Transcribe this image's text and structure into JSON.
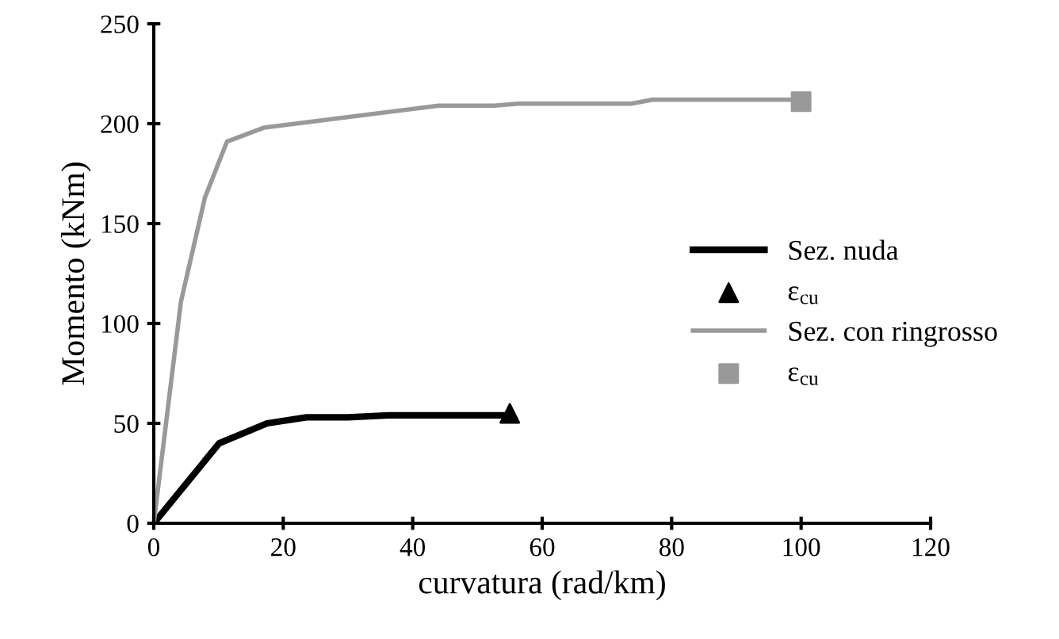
{
  "chart_data": {
    "type": "line",
    "xlabel": "curvatura (rad/km)",
    "ylabel": "Momento (kNm)",
    "xlim": [
      0,
      120
    ],
    "xticks": [
      0,
      20,
      40,
      60,
      80,
      100,
      120
    ],
    "ylim": [
      0,
      250
    ],
    "yticks": [
      0,
      50,
      100,
      150,
      200,
      250
    ],
    "grid": false,
    "legend": "right",
    "series": [
      {
        "name": "Sez. nuda",
        "color": "#000000",
        "x": [
          0,
          10.1,
          17.5,
          23.6,
          30,
          36.3,
          54.7
        ],
        "values": [
          0,
          40,
          50,
          53,
          53,
          54,
          54
        ]
      },
      {
        "name": "ε$_{cu}$",
        "type": "scatter",
        "marker": "triangle",
        "color": "#000000",
        "x": [
          55
        ],
        "values": [
          55
        ]
      },
      {
        "name": "Sez. con ringrosso",
        "color": "#999999",
        "x": [
          0,
          4.2,
          7.9,
          11.3,
          17,
          44,
          52.6,
          56.3,
          73.8,
          77,
          100
        ],
        "values": [
          0,
          111,
          163,
          191,
          198,
          209,
          209,
          210,
          210,
          212,
          212
        ]
      },
      {
        "name": "ε$_{cu}$",
        "type": "scatter",
        "marker": "square",
        "color": "#999999",
        "x": [
          100
        ],
        "values": [
          211
        ]
      }
    ]
  }
}
